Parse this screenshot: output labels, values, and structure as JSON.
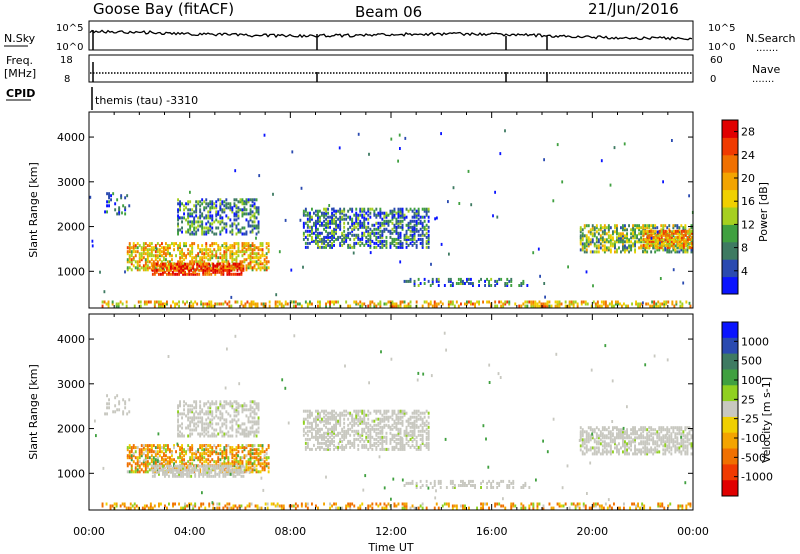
{
  "header": {
    "station": "Goose Bay (fitACF)",
    "beam": "Beam 06",
    "date": "21/Jun/2016"
  },
  "labels": {
    "nsky": "N.Sky",
    "nsearch": "N.Search",
    "freq_line1": "Freq.",
    "freq_line2": "[MHz]",
    "nave": "Nave",
    "cpid": "CPID",
    "cpid_value": "themis (tau) -3310",
    "noise_tick_top": "10^5",
    "noise_tick_bottom": "10^0",
    "freq_tick_top": "18",
    "freq_tick_bottom": "8",
    "nave_tick_top": "60",
    "nave_tick_bottom": "0",
    "dots": "......."
  },
  "chart_data": [
    {
      "type": "heatmap",
      "name": "power-panel",
      "ylabel": "Slant Range [km]",
      "xlabel": "",
      "ylim": [
        180,
        4560
      ],
      "yticks": [
        "1000",
        "2000",
        "3000",
        "4000"
      ],
      "colorbar": {
        "label": "Power [dB]",
        "ticks": [
          "4",
          "8",
          "12",
          "16",
          "20",
          "24",
          "28"
        ],
        "colors": [
          "#0a14ff",
          "#2a4ab0",
          "#3e7a62",
          "#40a040",
          "#a6d020",
          "#f0d000",
          "#f3a400",
          "#f07000",
          "#f03a00",
          "#e00000"
        ],
        "range": [
          0,
          30
        ]
      },
      "bands": [
        {
          "start": 0.6,
          "end": 1.6,
          "r0": 2250,
          "r1": 2750,
          "v": 5,
          "d": 0.25
        },
        {
          "start": 1.5,
          "end": 7.2,
          "r0": 1000,
          "r1": 1650,
          "v": 18,
          "d": 0.55
        },
        {
          "start": 2.5,
          "end": 6.2,
          "r0": 900,
          "r1": 1150,
          "v": 26,
          "d": 0.7
        },
        {
          "start": 3.5,
          "end": 6.8,
          "r0": 1800,
          "r1": 2600,
          "v": 8,
          "d": 0.45
        },
        {
          "start": 8.5,
          "end": 13.5,
          "r0": 1500,
          "r1": 2400,
          "v": 7,
          "d": 0.5
        },
        {
          "start": 12.5,
          "end": 17.5,
          "r0": 650,
          "r1": 850,
          "v": 6,
          "d": 0.3
        },
        {
          "start": 19.5,
          "end": 24.0,
          "r0": 1400,
          "r1": 2050,
          "v": 12,
          "d": 0.6
        },
        {
          "start": 22.0,
          "end": 24.0,
          "r0": 1500,
          "r1": 1900,
          "v": 20,
          "d": 0.7
        },
        {
          "start": 0.5,
          "end": 24.0,
          "r0": 190,
          "r1": 340,
          "v": 18,
          "d": 0.45
        }
      ]
    },
    {
      "type": "heatmap",
      "name": "velocity-panel",
      "ylabel": "Slant Range [km]",
      "xlabel": "Time UT",
      "ylim": [
        180,
        4560
      ],
      "yticks": [
        "1000",
        "2000",
        "3000",
        "4000"
      ],
      "xticks": [
        "00:00",
        "04:00",
        "08:00",
        "12:00",
        "16:00",
        "20:00",
        "00:00"
      ],
      "xlim_hours": [
        0,
        24
      ],
      "colorbar": {
        "label": "Velocity [m s-1]",
        "ticks": [
          "1000",
          "500",
          "100",
          "25",
          "-25",
          "-100",
          "-500",
          "-1000"
        ],
        "colors": [
          "#0a14ff",
          "#2a4ab0",
          "#3e7a62",
          "#40a040",
          "#90d020",
          "#c8c8c0",
          "#f0d000",
          "#f3a400",
          "#f07000",
          "#f03a00",
          "#e00000"
        ],
        "ground_color": "#c8c8c0"
      },
      "bands": [
        {
          "start": 0.6,
          "end": 1.6,
          "r0": 2250,
          "r1": 2750,
          "v": 0,
          "d": 0.2
        },
        {
          "start": 1.5,
          "end": 7.2,
          "r0": 1000,
          "r1": 1650,
          "v": -150,
          "d": 0.55
        },
        {
          "start": 2.5,
          "end": 6.2,
          "r0": 900,
          "r1": 1150,
          "v": 0,
          "d": 0.7
        },
        {
          "start": 3.5,
          "end": 6.8,
          "r0": 1800,
          "r1": 2600,
          "v": 0,
          "d": 0.45
        },
        {
          "start": 8.5,
          "end": 13.5,
          "r0": 1500,
          "r1": 2400,
          "v": 0,
          "d": 0.5
        },
        {
          "start": 12.5,
          "end": 17.5,
          "r0": 650,
          "r1": 850,
          "v": 0,
          "d": 0.3
        },
        {
          "start": 19.5,
          "end": 24.0,
          "r0": 1400,
          "r1": 2050,
          "v": 0,
          "d": 0.6
        },
        {
          "start": 0.5,
          "end": 24.0,
          "r0": 190,
          "r1": 340,
          "v": -200,
          "d": 0.35
        }
      ]
    }
  ]
}
